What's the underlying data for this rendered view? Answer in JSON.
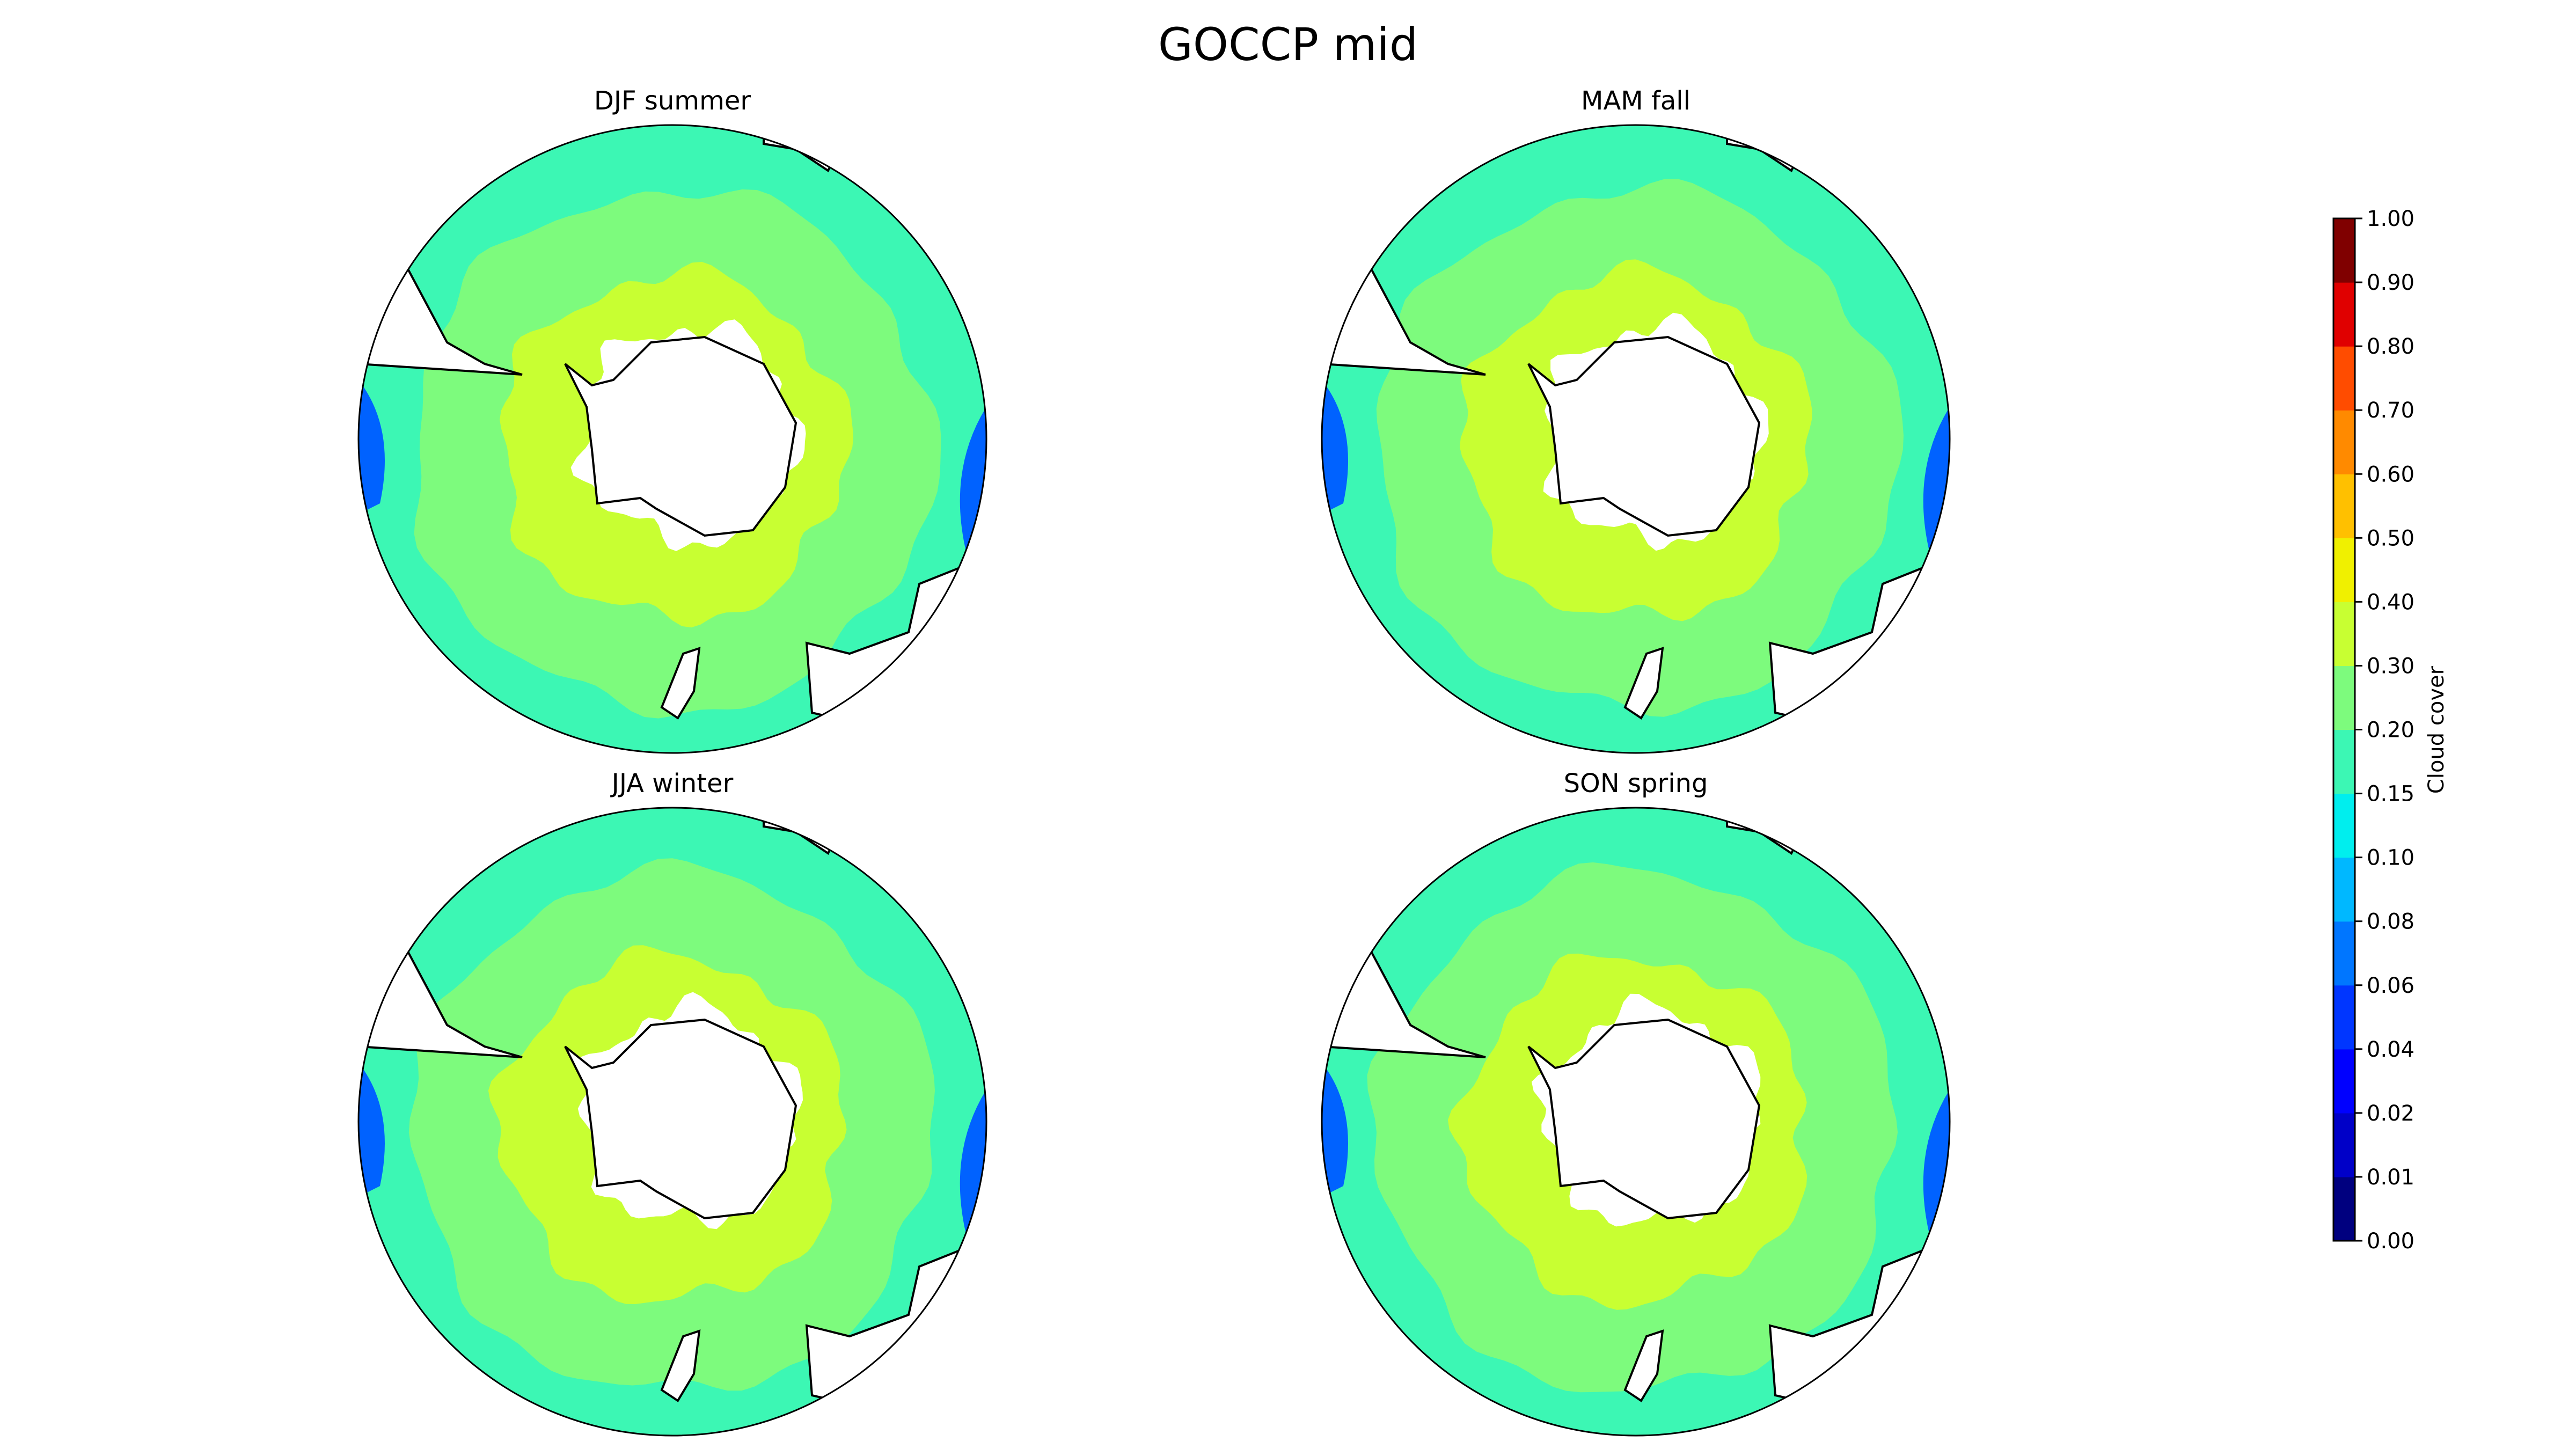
{
  "figure": {
    "title": "GOCCP mid",
    "panels": [
      {
        "id": "djf",
        "title": "DJF summer"
      },
      {
        "id": "mam",
        "title": "MAM fall"
      },
      {
        "id": "jja",
        "title": "JJA winter"
      },
      {
        "id": "son",
        "title": "SON spring"
      }
    ]
  },
  "colorbar": {
    "label": "Cloud cover",
    "ticks": [
      "0.00",
      "0.01",
      "0.02",
      "0.04",
      "0.06",
      "0.08",
      "0.10",
      "0.15",
      "0.20",
      "0.30",
      "0.40",
      "0.50",
      "0.60",
      "0.70",
      "0.80",
      "0.90",
      "1.00"
    ],
    "colors": [
      "#00007f",
      "#0000c8",
      "#0000ff",
      "#0036ff",
      "#0076ff",
      "#00b8ff",
      "#00eeee",
      "#3cf7b4",
      "#7dfb7d",
      "#c8ff32",
      "#f0f000",
      "#ffc000",
      "#ff8a00",
      "#ff4c00",
      "#e00000",
      "#800000"
    ]
  },
  "colors": {
    "land": "#ffffff",
    "coast": "#000000",
    "ocean_low": "#3cf7b4",
    "ocean_mid": "#7dfb7d",
    "ocean_high": "#c8ff32"
  }
}
